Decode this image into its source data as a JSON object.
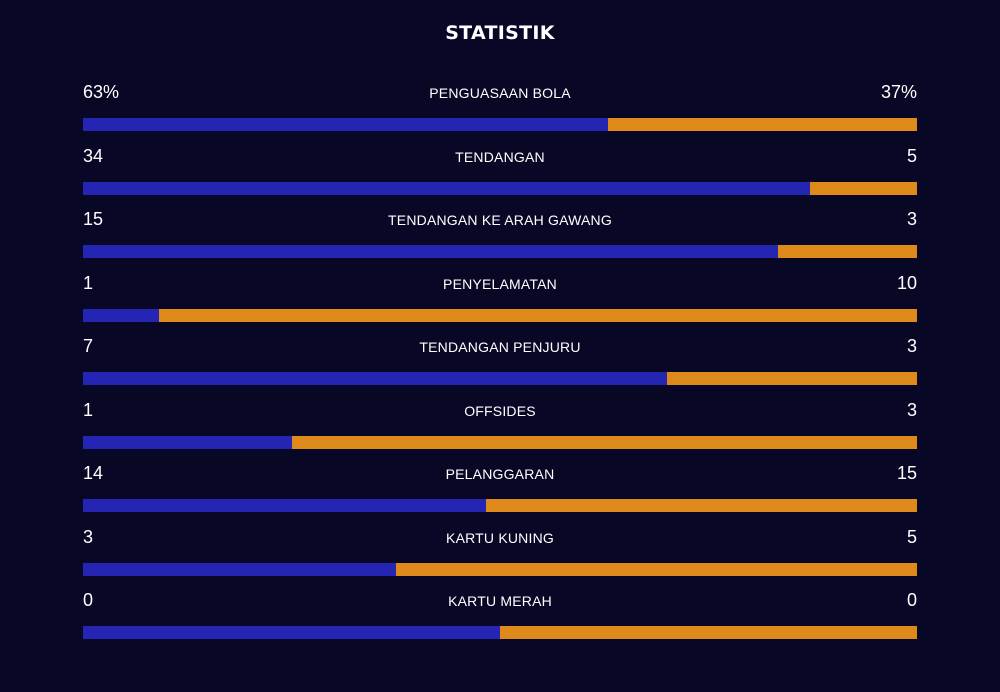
{
  "title": "STATISTIK",
  "colors": {
    "background": "#080826",
    "home_bar": "#2426b3",
    "away_bar": "#dd8a1b",
    "text": "#ffffff"
  },
  "stats": [
    {
      "label": "PENGUASAAN BOLA",
      "home": "63%",
      "away": "37%",
      "home_share": 0.63
    },
    {
      "label": "TENDANGAN",
      "home": "34",
      "away": "5",
      "home_share": 0.872
    },
    {
      "label": "TENDANGAN KE ARAH GAWANG",
      "home": "15",
      "away": "3",
      "home_share": 0.833
    },
    {
      "label": "PENYELAMATAN",
      "home": "1",
      "away": "10",
      "home_share": 0.091
    },
    {
      "label": "TENDANGAN PENJURU",
      "home": "7",
      "away": "3",
      "home_share": 0.7
    },
    {
      "label": "OFFSIDES",
      "home": "1",
      "away": "3",
      "home_share": 0.25
    },
    {
      "label": "PELANGGARAN",
      "home": "14",
      "away": "15",
      "home_share": 0.483
    },
    {
      "label": "KARTU KUNING",
      "home": "3",
      "away": "5",
      "home_share": 0.375
    },
    {
      "label": "KARTU MERAH",
      "home": "0",
      "away": "0",
      "home_share": 0.5
    }
  ]
}
